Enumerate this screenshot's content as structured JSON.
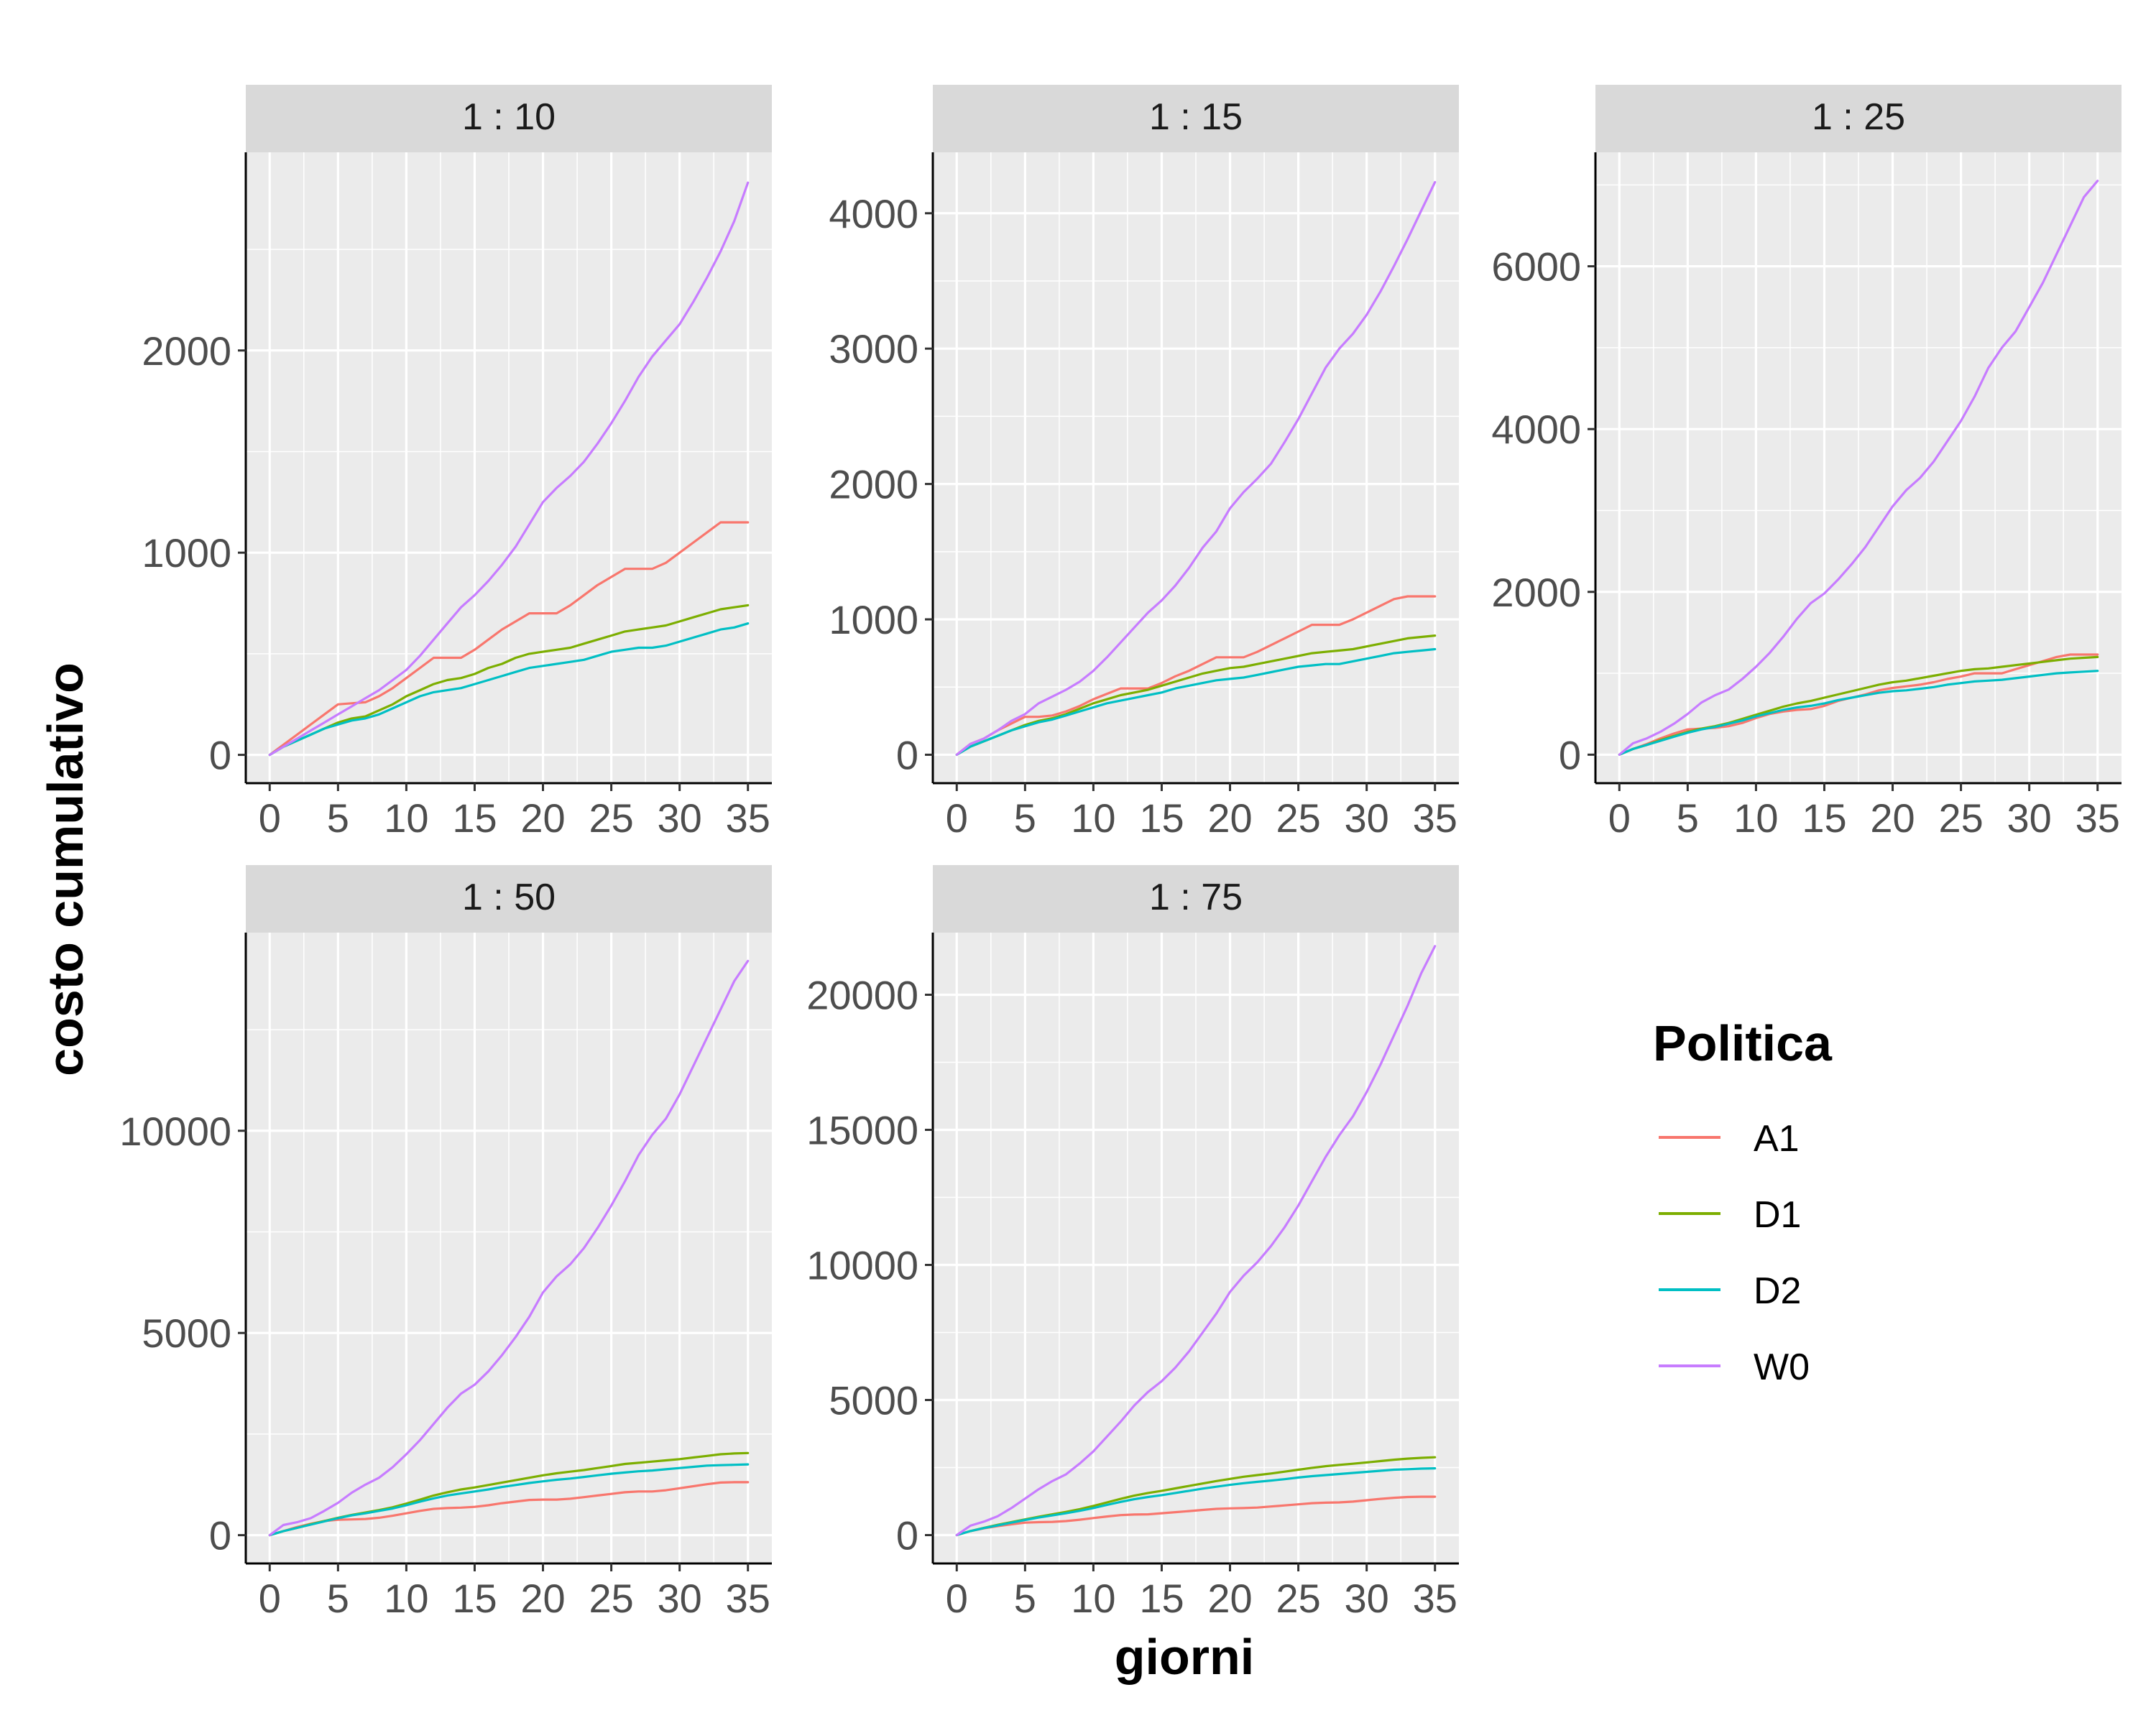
{
  "chart_data": {
    "type": "line",
    "xlabel": "giorni",
    "ylabel": "costo cumulativo",
    "xticks": [
      0,
      5,
      10,
      15,
      20,
      25,
      30,
      35
    ],
    "legend": {
      "title": "Politica",
      "position": "right",
      "entries": [
        {
          "name": "A1",
          "color": "#F8766D"
        },
        {
          "name": "D1",
          "color": "#7CAE00"
        },
        {
          "name": "D2",
          "color": "#00BFC4"
        },
        {
          "name": "W0",
          "color": "#C77CFF"
        }
      ]
    },
    "grid": true,
    "x": [
      0,
      1,
      2,
      3,
      4,
      5,
      6,
      7,
      8,
      9,
      10,
      11,
      12,
      13,
      14,
      15,
      16,
      17,
      18,
      19,
      20,
      21,
      22,
      23,
      24,
      25,
      26,
      27,
      28,
      29,
      30,
      31,
      32,
      33,
      34,
      35
    ],
    "panels": [
      {
        "title": "1 : 10",
        "ylim": [
          -140,
          2980
        ],
        "yticks": [
          0,
          1000,
          2000
        ],
        "series": [
          {
            "name": "A1",
            "values": [
              0,
              50,
              100,
              150,
              200,
              250,
              255,
              260,
              290,
              330,
              380,
              430,
              480,
              480,
              480,
              520,
              570,
              620,
              660,
              700,
              700,
              700,
              740,
              790,
              840,
              880,
              920,
              920,
              920,
              950,
              1000,
              1050,
              1100,
              1150,
              1150,
              1150
            ]
          },
          {
            "name": "D1",
            "values": [
              0,
              40,
              70,
              100,
              130,
              160,
              180,
              190,
              220,
              250,
              290,
              320,
              350,
              370,
              380,
              400,
              430,
              450,
              480,
              500,
              510,
              520,
              530,
              550,
              570,
              590,
              610,
              620,
              630,
              640,
              660,
              680,
              700,
              720,
              730,
              740
            ]
          },
          {
            "name": "D2",
            "values": [
              0,
              40,
              70,
              100,
              130,
              150,
              170,
              180,
              200,
              230,
              260,
              290,
              310,
              320,
              330,
              350,
              370,
              390,
              410,
              430,
              440,
              450,
              460,
              470,
              490,
              510,
              520,
              530,
              530,
              540,
              560,
              580,
              600,
              620,
              630,
              650
            ]
          },
          {
            "name": "W0",
            "values": [
              0,
              40,
              80,
              120,
              160,
              200,
              240,
              280,
              320,
              370,
              420,
              490,
              570,
              650,
              730,
              790,
              860,
              940,
              1030,
              1140,
              1250,
              1320,
              1380,
              1450,
              1540,
              1640,
              1750,
              1870,
              1970,
              2050,
              2130,
              2240,
              2360,
              2490,
              2640,
              2830
            ]
          }
        ]
      },
      {
        "title": "1 : 15",
        "ylim": [
          -210,
          4450
        ],
        "yticks": [
          0,
          1000,
          2000,
          3000,
          4000
        ],
        "series": [
          {
            "name": "A1",
            "values": [
              0,
              80,
              120,
              180,
              230,
              280,
              280,
              290,
              320,
              360,
              410,
              450,
              490,
              490,
              490,
              530,
              580,
              620,
              670,
              720,
              720,
              720,
              760,
              810,
              860,
              910,
              960,
              960,
              960,
              1000,
              1050,
              1100,
              1150,
              1170,
              1170,
              1170
            ]
          },
          {
            "name": "D1",
            "values": [
              0,
              60,
              100,
              140,
              180,
              220,
              250,
              270,
              300,
              340,
              380,
              410,
              440,
              460,
              480,
              510,
              540,
              570,
              600,
              620,
              640,
              650,
              670,
              690,
              710,
              730,
              750,
              760,
              770,
              780,
              800,
              820,
              840,
              860,
              870,
              880
            ]
          },
          {
            "name": "D2",
            "values": [
              0,
              60,
              100,
              140,
              180,
              210,
              240,
              260,
              290,
              320,
              350,
              380,
              400,
              420,
              440,
              460,
              490,
              510,
              530,
              550,
              560,
              570,
              590,
              610,
              630,
              650,
              660,
              670,
              670,
              690,
              710,
              730,
              750,
              760,
              770,
              780
            ]
          },
          {
            "name": "W0",
            "values": [
              0,
              80,
              120,
              180,
              250,
              300,
              380,
              430,
              480,
              540,
              620,
              720,
              830,
              940,
              1050,
              1140,
              1250,
              1380,
              1530,
              1650,
              1820,
              1940,
              2040,
              2150,
              2310,
              2480,
              2670,
              2860,
              3000,
              3110,
              3250,
              3420,
              3610,
              3810,
              4020,
              4230
            ]
          }
        ]
      },
      {
        "title": "1 : 25",
        "ylim": [
          -350,
          7400
        ],
        "yticks": [
          0,
          2000,
          4000,
          6000
        ],
        "series": [
          {
            "name": "A1",
            "values": [
              0,
              70,
              130,
              200,
              260,
              310,
              320,
              330,
              350,
              390,
              450,
              500,
              530,
              550,
              560,
              600,
              660,
              700,
              740,
              790,
              820,
              840,
              860,
              890,
              930,
              960,
              1000,
              1000,
              1000,
              1050,
              1100,
              1150,
              1200,
              1230,
              1230,
              1230
            ]
          },
          {
            "name": "D1",
            "values": [
              0,
              70,
              120,
              180,
              230,
              280,
              320,
              350,
              390,
              440,
              490,
              540,
              590,
              630,
              660,
              700,
              740,
              780,
              820,
              860,
              890,
              910,
              940,
              970,
              1000,
              1030,
              1050,
              1060,
              1080,
              1100,
              1120,
              1140,
              1160,
              1180,
              1190,
              1200
            ]
          },
          {
            "name": "D2",
            "values": [
              0,
              70,
              120,
              170,
              220,
              270,
              310,
              340,
              380,
              420,
              470,
              510,
              550,
              580,
              600,
              630,
              670,
              700,
              730,
              760,
              780,
              790,
              810,
              830,
              860,
              880,
              900,
              910,
              920,
              940,
              960,
              980,
              1000,
              1010,
              1020,
              1030
            ]
          },
          {
            "name": "W0",
            "values": [
              0,
              140,
              200,
              280,
              380,
              500,
              640,
              730,
              800,
              930,
              1080,
              1250,
              1450,
              1670,
              1860,
              1980,
              2150,
              2340,
              2550,
              2800,
              3050,
              3250,
              3400,
              3600,
              3850,
              4100,
              4400,
              4750,
              5000,
              5200,
              5500,
              5800,
              6150,
              6500,
              6850,
              7050
            ]
          }
        ]
      },
      {
        "title": "1 : 50",
        "ylim": [
          -700,
          14900
        ],
        "yticks": [
          0,
          5000,
          10000
        ],
        "series": [
          {
            "name": "A1",
            "values": [
              0,
              100,
              200,
              280,
              350,
              380,
              390,
              400,
              430,
              480,
              540,
              600,
              650,
              670,
              680,
              700,
              740,
              790,
              830,
              870,
              880,
              880,
              900,
              940,
              980,
              1020,
              1060,
              1080,
              1080,
              1110,
              1160,
              1210,
              1260,
              1300,
              1310,
              1310
            ]
          },
          {
            "name": "D1",
            "values": [
              0,
              100,
              180,
              270,
              350,
              430,
              500,
              560,
              620,
              690,
              780,
              880,
              980,
              1060,
              1130,
              1180,
              1240,
              1300,
              1360,
              1420,
              1480,
              1530,
              1570,
              1610,
              1660,
              1710,
              1760,
              1790,
              1820,
              1850,
              1880,
              1920,
              1960,
              2000,
              2020,
              2030
            ]
          },
          {
            "name": "D2",
            "values": [
              0,
              100,
              180,
              260,
              340,
              420,
              490,
              540,
              600,
              660,
              740,
              830,
              910,
              980,
              1030,
              1080,
              1130,
              1190,
              1240,
              1290,
              1330,
              1370,
              1400,
              1440,
              1480,
              1520,
              1550,
              1580,
              1600,
              1630,
              1660,
              1690,
              1720,
              1730,
              1740,
              1750
            ]
          },
          {
            "name": "W0",
            "values": [
              0,
              250,
              320,
              420,
              600,
              800,
              1050,
              1250,
              1420,
              1680,
              2000,
              2350,
              2750,
              3150,
              3500,
              3720,
              4050,
              4450,
              4900,
              5400,
              6000,
              6400,
              6700,
              7100,
              7600,
              8150,
              8750,
              9400,
              9900,
              10300,
              10900,
              11600,
              12300,
              13000,
              13700,
              14200
            ]
          }
        ]
      },
      {
        "title": "1 : 75",
        "ylim": [
          -1050,
          22300
        ],
        "yticks": [
          0,
          5000,
          10000,
          15000,
          20000
        ],
        "series": [
          {
            "name": "A1",
            "values": [
              0,
              150,
              250,
              330,
              400,
              460,
              480,
              490,
              520,
              570,
              630,
              690,
              740,
              760,
              770,
              810,
              850,
              890,
              930,
              970,
              990,
              1000,
              1020,
              1060,
              1100,
              1140,
              1180,
              1200,
              1210,
              1240,
              1290,
              1340,
              1380,
              1410,
              1420,
              1420
            ]
          },
          {
            "name": "D1",
            "values": [
              0,
              150,
              270,
              380,
              480,
              580,
              680,
              770,
              860,
              960,
              1080,
              1210,
              1340,
              1460,
              1560,
              1640,
              1730,
              1820,
              1910,
              2000,
              2080,
              2160,
              2220,
              2280,
              2350,
              2420,
              2490,
              2550,
              2600,
              2640,
              2690,
              2740,
              2790,
              2830,
              2860,
              2880
            ]
          },
          {
            "name": "D2",
            "values": [
              0,
              150,
              260,
              360,
              460,
              560,
              650,
              730,
              810,
              900,
              1000,
              1120,
              1230,
              1330,
              1410,
              1480,
              1560,
              1640,
              1720,
              1790,
              1860,
              1920,
              1970,
              2020,
              2070,
              2130,
              2180,
              2220,
              2260,
              2300,
              2340,
              2380,
              2420,
              2440,
              2460,
              2470
            ]
          },
          {
            "name": "W0",
            "values": [
              0,
              350,
              500,
              700,
              1000,
              1350,
              1700,
              2000,
              2250,
              2650,
              3100,
              3650,
              4200,
              4800,
              5300,
              5700,
              6200,
              6800,
              7500,
              8200,
              9000,
              9600,
              10100,
              10700,
              11400,
              12200,
              13100,
              14000,
              14800,
              15500,
              16400,
              17400,
              18500,
              19600,
              20800,
              21800
            ]
          }
        ]
      }
    ]
  }
}
